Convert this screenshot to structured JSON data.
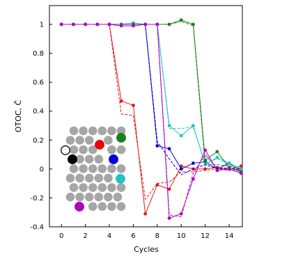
{
  "chart_data": {
    "type": "line",
    "xlabel": "Cycles",
    "ylabel": "OTOC, C̄",
    "x": [
      0,
      1,
      2,
      3,
      4,
      5,
      6,
      7,
      8,
      9,
      10,
      11,
      12,
      13,
      14,
      15
    ],
    "xlim": [
      -1,
      15.1
    ],
    "xticks": [
      0,
      2,
      4,
      6,
      8,
      10,
      12,
      14
    ],
    "ylim": [
      -0.4,
      1.13
    ],
    "yticks": [
      -0.4,
      -0.2,
      0.0,
      0.2,
      0.4,
      0.6,
      0.8,
      1.0
    ],
    "series": [
      {
        "color": "#e41a1c",
        "linestyle": "solid",
        "markers": true,
        "values": [
          1,
          1,
          1,
          1,
          1,
          0.47,
          0.44,
          -0.31,
          -0.11,
          -0.14,
          0.02,
          0.0,
          0.0,
          0.01,
          0.0,
          0.02
        ]
      },
      {
        "color": "#e41a1c",
        "linestyle": "dashed",
        "markers": false,
        "values": [
          1,
          1,
          1,
          1,
          1,
          0.38,
          0.37,
          -0.21,
          -0.1,
          -0.09,
          -0.02,
          -0.02,
          -0.01,
          0.0,
          0.0,
          0.0
        ]
      },
      {
        "color": "#0000dd",
        "linestyle": "solid",
        "markers": true,
        "values": [
          1,
          1,
          1,
          1,
          1,
          1,
          1,
          1,
          0.16,
          0.14,
          0.0,
          0.04,
          0.05,
          0.0,
          0.04,
          -0.02
        ]
      },
      {
        "color": "#0000dd",
        "linestyle": "dashed",
        "markers": false,
        "values": [
          1,
          1,
          1,
          1,
          1,
          1,
          1,
          1,
          0.19,
          0.07,
          -0.04,
          0.0,
          0.03,
          0.0,
          0.01,
          -0.01
        ]
      },
      {
        "color": "#22c4c4",
        "linestyle": "solid",
        "markers": true,
        "values": [
          1,
          1,
          1,
          1,
          1,
          1,
          1.01,
          1,
          1,
          0.3,
          0.23,
          0.3,
          0.03,
          0.08,
          0.04,
          0.0
        ]
      },
      {
        "color": "#22c4c4",
        "linestyle": "dashed",
        "markers": false,
        "values": [
          1,
          1,
          1,
          1,
          1,
          1,
          1,
          1,
          1,
          0.28,
          0.28,
          0.29,
          0.04,
          0.07,
          0.03,
          0.0
        ]
      },
      {
        "color": "#1a7f1a",
        "linestyle": "solid",
        "markers": true,
        "values": [
          1,
          1,
          1,
          1,
          1,
          1,
          1,
          1,
          1,
          1,
          1.03,
          1.0,
          0.06,
          0.12,
          0.01,
          -0.02
        ]
      },
      {
        "color": "#1a7f1a",
        "linestyle": "dashed",
        "markers": false,
        "values": [
          1,
          1,
          1,
          1,
          1,
          1,
          1,
          1,
          1,
          1,
          1.02,
          0.99,
          0.03,
          0.03,
          0.02,
          0.0
        ]
      },
      {
        "color": "#b000c0",
        "linestyle": "solid",
        "markers": true,
        "values": [
          1,
          1,
          1,
          1,
          1,
          0.99,
          0.99,
          1,
          1,
          -0.34,
          -0.31,
          -0.07,
          0.13,
          -0.01,
          0.0,
          -0.03
        ]
      },
      {
        "color": "#b000c0",
        "linestyle": "dashed",
        "markers": false,
        "values": [
          1,
          1,
          1,
          1,
          1,
          1,
          1,
          1,
          1,
          -0.32,
          -0.33,
          -0.03,
          0.1,
          0.0,
          -0.01,
          0.0
        ]
      }
    ]
  }
}
